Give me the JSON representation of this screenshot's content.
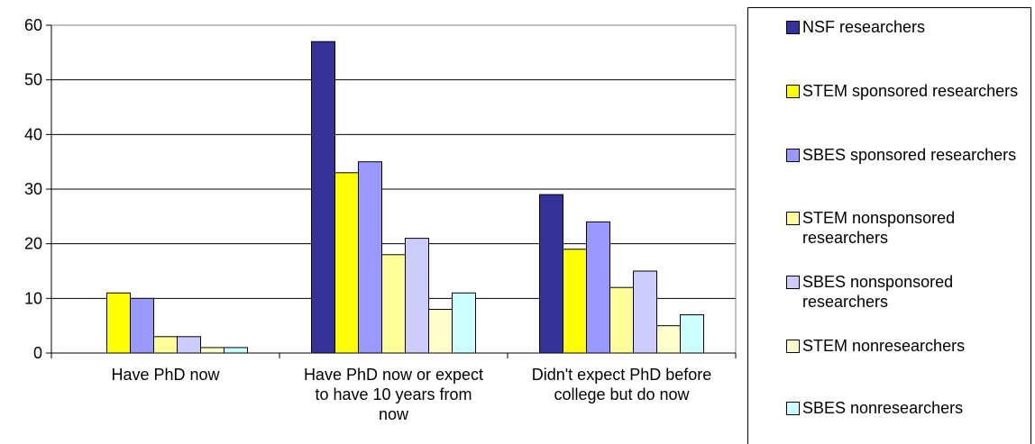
{
  "chart_data": {
    "type": "bar",
    "categories": [
      "Have PhD now",
      "Have PhD now or expect to have 10 years from now",
      "Didn't expect PhD before college but do now"
    ],
    "ylim": [
      0,
      60
    ],
    "yticks": [
      0,
      10,
      20,
      30,
      40,
      50,
      60
    ],
    "grid": true,
    "legend_position": "right",
    "series": [
      {
        "name": "NSF researchers",
        "color": "#333399",
        "values": [
          0,
          57,
          29
        ]
      },
      {
        "name": "STEM sponsored researchers",
        "color": "#FFFF00",
        "values": [
          11,
          33,
          19
        ]
      },
      {
        "name": "SBES sponsored researchers",
        "color": "#9999FF",
        "values": [
          10,
          35,
          24
        ]
      },
      {
        "name": "STEM nonsponsored researchers",
        "color": "#FFFF99",
        "values": [
          3,
          18,
          12
        ]
      },
      {
        "name": "SBES nonsponsored researchers",
        "color": "#CCCCFF",
        "values": [
          3,
          21,
          15
        ]
      },
      {
        "name": "STEM nonresearchers",
        "color": "#FFFFCC",
        "values": [
          1,
          8,
          5
        ]
      },
      {
        "name": "SBES nonresearchers",
        "color": "#CCFFFF",
        "values": [
          1,
          11,
          7
        ]
      }
    ]
  }
}
